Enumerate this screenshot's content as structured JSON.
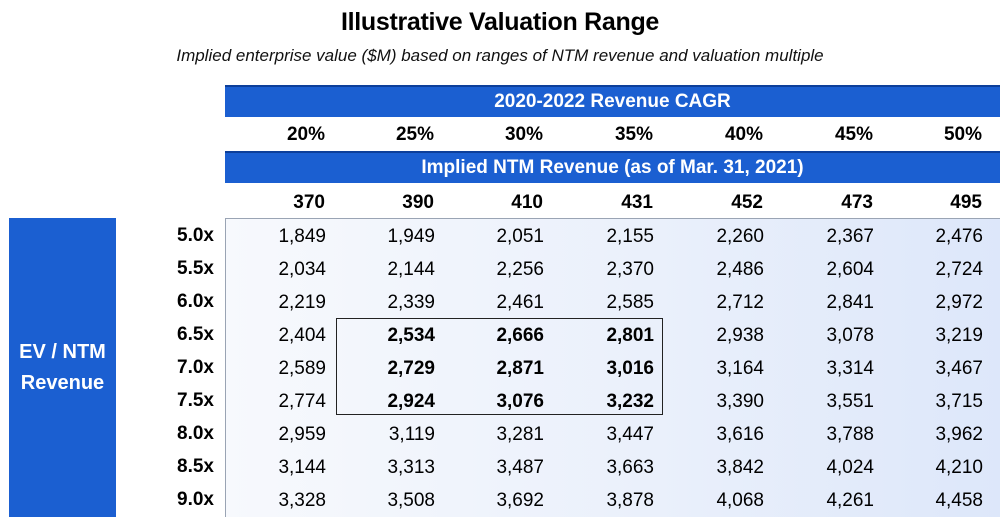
{
  "title": "Illustrative Valuation Range",
  "subtitle": "Implied enterprise value ($M) based on ranges of NTM revenue and valuation multiple",
  "cagr_banner": "2020-2022 Revenue CAGR",
  "cagr_values": [
    "20%",
    "25%",
    "30%",
    "35%",
    "40%",
    "45%",
    "50%"
  ],
  "ntm_banner": "Implied NTM Revenue (as of Mar. 31, 2021)",
  "ntm_values": [
    "370",
    "390",
    "410",
    "431",
    "452",
    "473",
    "495"
  ],
  "side_label_line1": "EV / NTM",
  "side_label_line2": "Revenue",
  "multiples": [
    "5.0x",
    "5.5x",
    "6.0x",
    "6.5x",
    "7.0x",
    "7.5x",
    "8.0x",
    "8.5x",
    "9.0x"
  ],
  "rows": [
    [
      "1,849",
      "1,949",
      "2,051",
      "2,155",
      "2,260",
      "2,367",
      "2,476"
    ],
    [
      "2,034",
      "2,144",
      "2,256",
      "2,370",
      "2,486",
      "2,604",
      "2,724"
    ],
    [
      "2,219",
      "2,339",
      "2,461",
      "2,585",
      "2,712",
      "2,841",
      "2,972"
    ],
    [
      "2,404",
      "2,534",
      "2,666",
      "2,801",
      "2,938",
      "3,078",
      "3,219"
    ],
    [
      "2,589",
      "2,729",
      "2,871",
      "3,016",
      "3,164",
      "3,314",
      "3,467"
    ],
    [
      "2,774",
      "2,924",
      "3,076",
      "3,232",
      "3,390",
      "3,551",
      "3,715"
    ],
    [
      "2,959",
      "3,119",
      "3,281",
      "3,447",
      "3,616",
      "3,788",
      "3,962"
    ],
    [
      "3,144",
      "3,313",
      "3,487",
      "3,663",
      "3,842",
      "4,024",
      "4,210"
    ],
    [
      "3,328",
      "3,508",
      "3,692",
      "3,878",
      "4,068",
      "4,261",
      "4,458"
    ]
  ],
  "highlight": {
    "row_start": 3,
    "row_end": 5,
    "col_start": 1,
    "col_end": 3
  },
  "colors": {
    "banner": "#1b5fd1",
    "text": "#000000"
  }
}
